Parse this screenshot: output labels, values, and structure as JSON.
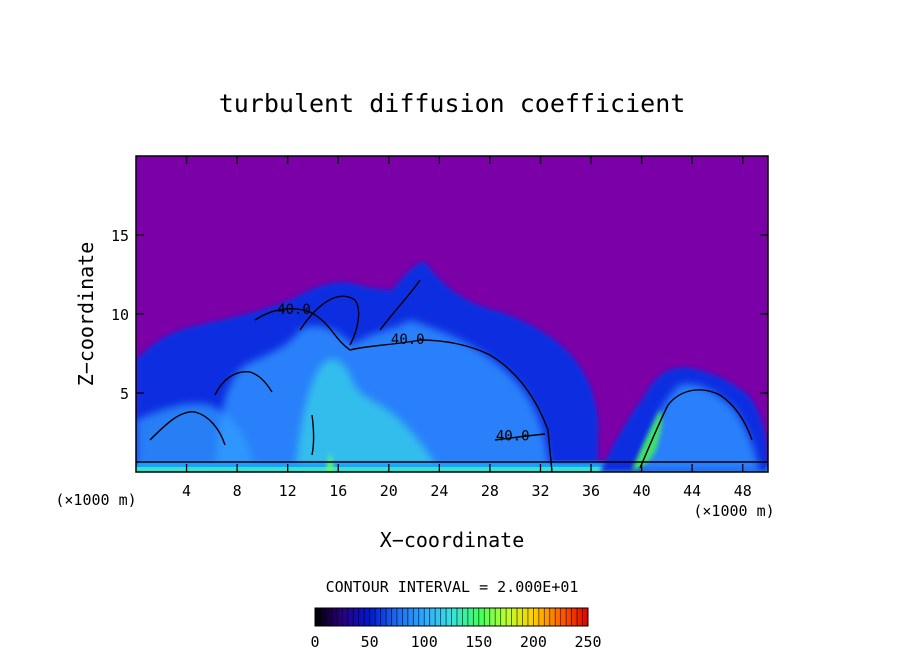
{
  "chart_data": {
    "type": "heatmap",
    "title": "turbulent diffusion coefficient",
    "xlabel": "X−coordinate",
    "ylabel": "Z−coordinate",
    "x_unit_left": "(×1000 m)",
    "x_unit_right": "(×1000 m)",
    "xlim": [
      0,
      50
    ],
    "ylim": [
      0,
      20
    ],
    "x_ticks": [
      4,
      8,
      12,
      16,
      20,
      24,
      28,
      32,
      36,
      40,
      44,
      48
    ],
    "y_ticks": [
      5,
      10,
      15
    ],
    "contour_labels": [
      {
        "text": "40.0",
        "x": 12.5,
        "z": 10.0
      },
      {
        "text": "40.0",
        "x": 21.5,
        "z": 8.1
      },
      {
        "text": "40.0",
        "x": 29.8,
        "z": 2.0
      }
    ],
    "contour_interval_label": "CONTOUR INTERVAL = 2.000E+01",
    "colorbar": {
      "min": 0,
      "max": 250,
      "ticks": [
        0,
        50,
        100,
        150,
        200,
        250
      ],
      "colors": [
        "#000000",
        "#2a0080",
        "#0018d0",
        "#1e6cf0",
        "#2fa8ff",
        "#38e0e0",
        "#40ff60",
        "#b8ff30",
        "#ffd000",
        "#ff6000",
        "#e00000"
      ]
    },
    "background_color": "#7b00a8",
    "grid": false
  }
}
